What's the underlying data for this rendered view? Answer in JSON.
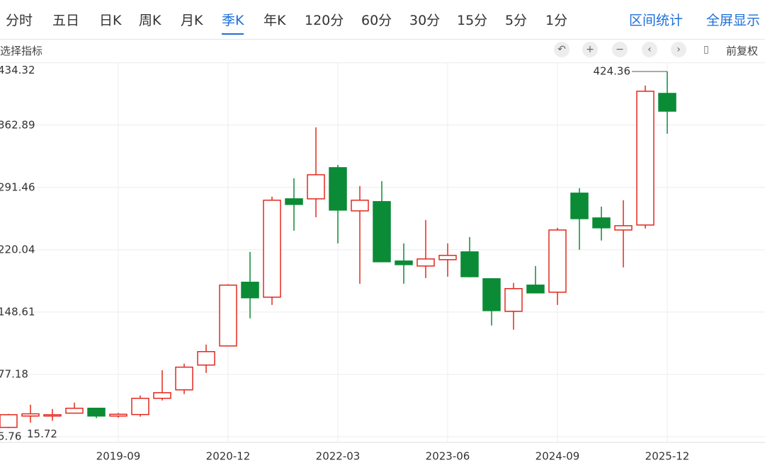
{
  "toolbar": {
    "tabs": [
      "分时",
      "五日",
      "日K",
      "周K",
      "月K",
      "季K",
      "年K",
      "120分",
      "60分",
      "30分",
      "15分",
      "5分",
      "1分"
    ],
    "actions": [
      "区间统计",
      "全屏显示"
    ]
  },
  "subbar": {
    "indicator": "选择指标",
    "adjust": "前复权"
  },
  "chart_data": {
    "type": "candlestick",
    "categories": [
      null,
      null,
      null,
      null,
      null,
      "2019-09",
      null,
      null,
      null,
      null,
      "2020-12",
      null,
      null,
      null,
      null,
      "2022-03",
      null,
      null,
      null,
      null,
      "2023-06",
      null,
      null,
      null,
      null,
      "2024-09",
      null,
      null,
      null,
      null,
      "2025-12"
    ],
    "open": [
      16.5,
      29.5,
      29.5,
      32.8,
      38.4,
      29.5,
      31.2,
      49.8,
      59.5,
      87.9,
      109.8,
      182.8,
      165.7,
      278.4,
      278.4,
      314.1,
      264.6,
      275.2,
      207.1,
      201.4,
      208.7,
      217.6,
      186.8,
      149.5,
      179.5,
      171.4,
      284.9,
      256.5,
      242.7,
      248.4,
      399.2
    ],
    "high": [
      32,
      42.5,
      37.6,
      44.9,
      39,
      33,
      53,
      82,
      89.5,
      111.4,
      180.5,
      217.6,
      280.9,
      301.9,
      360.3,
      317.3,
      293,
      298.7,
      227.3,
      254.1,
      227.3,
      234.6,
      187.5,
      182,
      201.4,
      245.2,
      290.6,
      269.5,
      276.8,
      408.2,
      424.36
    ],
    "low": [
      15.72,
      22,
      24,
      32.5,
      27,
      27.5,
      28.7,
      47.3,
      54.6,
      78.9,
      109.8,
      141.4,
      156.8,
      241.9,
      257.3,
      227.3,
      181.1,
      206,
      181.1,
      187.6,
      189.2,
      188.5,
      133.3,
      128.4,
      170,
      156.8,
      220.1,
      230.6,
      199.8,
      244.4,
      353
    ],
    "close": [
      31,
      32,
      31,
      38.4,
      29.5,
      31.5,
      49.8,
      56.2,
      85.5,
      103.3,
      179.5,
      165,
      276.8,
      272,
      306,
      265.5,
      276.8,
      206.3,
      203,
      209.5,
      213.6,
      189.2,
      150.3,
      175.5,
      170.6,
      242.7,
      255.7,
      245.2,
      247.6,
      401.7,
      378.9
    ],
    "up_color": "#e3281e",
    "down_color": "#0b8b36",
    "ylim": [
      5.76,
      434.32
    ],
    "yticks": [
      5.76,
      77.18,
      148.61,
      220.04,
      291.46,
      362.89,
      434.32
    ],
    "grid": true,
    "max_label": 424.36,
    "min_label": 15.72
  }
}
